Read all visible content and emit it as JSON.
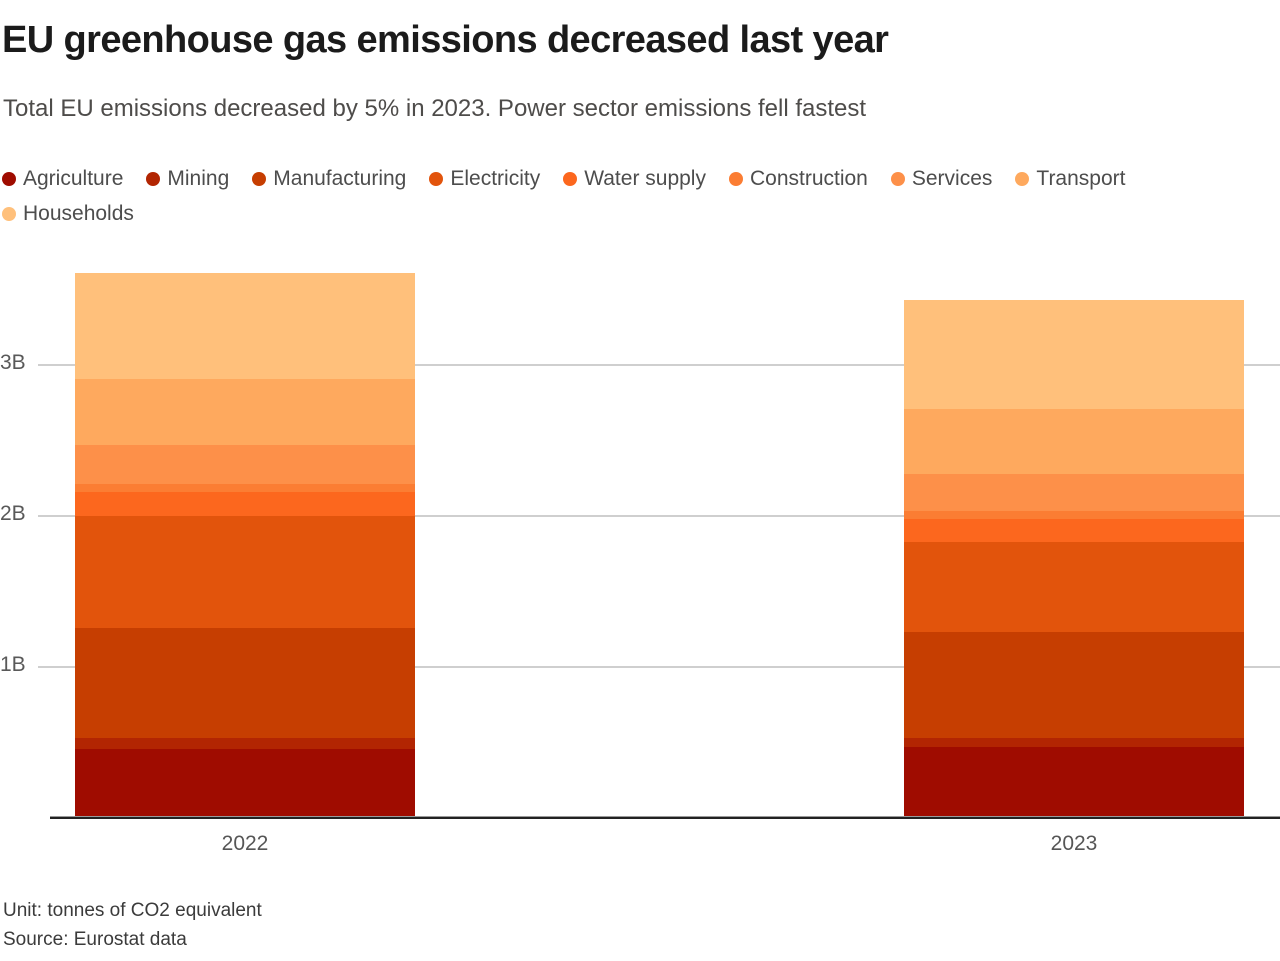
{
  "header": {
    "title": "EU greenhouse gas emissions decreased last year",
    "subtitle": "Total EU emissions decreased by 5% in 2023. Power sector emissions fell fastest"
  },
  "footer": {
    "unit": "Unit: tonnes of CO2 equivalent",
    "source": "Source: Eurostat data"
  },
  "chart_data": {
    "type": "bar",
    "stacked": true,
    "title": "EU greenhouse gas emissions decreased last year",
    "subtitle": "Total EU emissions decreased by 5% in 2023. Power sector emissions fell fastest",
    "unit": "billion tonnes of CO2 equivalent",
    "categories": [
      "2022",
      "2023"
    ],
    "series": [
      {
        "name": "Agriculture",
        "color": "#9f0c00",
        "values": [
          0.46,
          0.47
        ]
      },
      {
        "name": "Mining",
        "color": "#b22502",
        "values": [
          0.07,
          0.06
        ]
      },
      {
        "name": "Manufacturing",
        "color": "#c63e01",
        "values": [
          0.73,
          0.7
        ]
      },
      {
        "name": "Electricity",
        "color": "#e2540c",
        "values": [
          0.74,
          0.6
        ]
      },
      {
        "name": "Water supply",
        "color": "#fc671e",
        "values": [
          0.16,
          0.15
        ]
      },
      {
        "name": "Construction",
        "color": "#fb7d33",
        "values": [
          0.05,
          0.05
        ]
      },
      {
        "name": "Services",
        "color": "#fd9049",
        "values": [
          0.26,
          0.25
        ]
      },
      {
        "name": "Transport",
        "color": "#fea95e",
        "values": [
          0.44,
          0.43
        ]
      },
      {
        "name": "Households",
        "color": "#ffc07b",
        "values": [
          0.7,
          0.72
        ]
      }
    ],
    "totals": [
      3.61,
      3.43
    ],
    "y_ticks": [
      {
        "value": 1,
        "label": "1B"
      },
      {
        "value": 2,
        "label": "2B"
      },
      {
        "value": 3,
        "label": "3B"
      }
    ],
    "ylim": [
      0,
      3.73
    ],
    "grid": "horizontal",
    "legend_position": "top",
    "legend_rows": [
      8,
      1
    ]
  }
}
